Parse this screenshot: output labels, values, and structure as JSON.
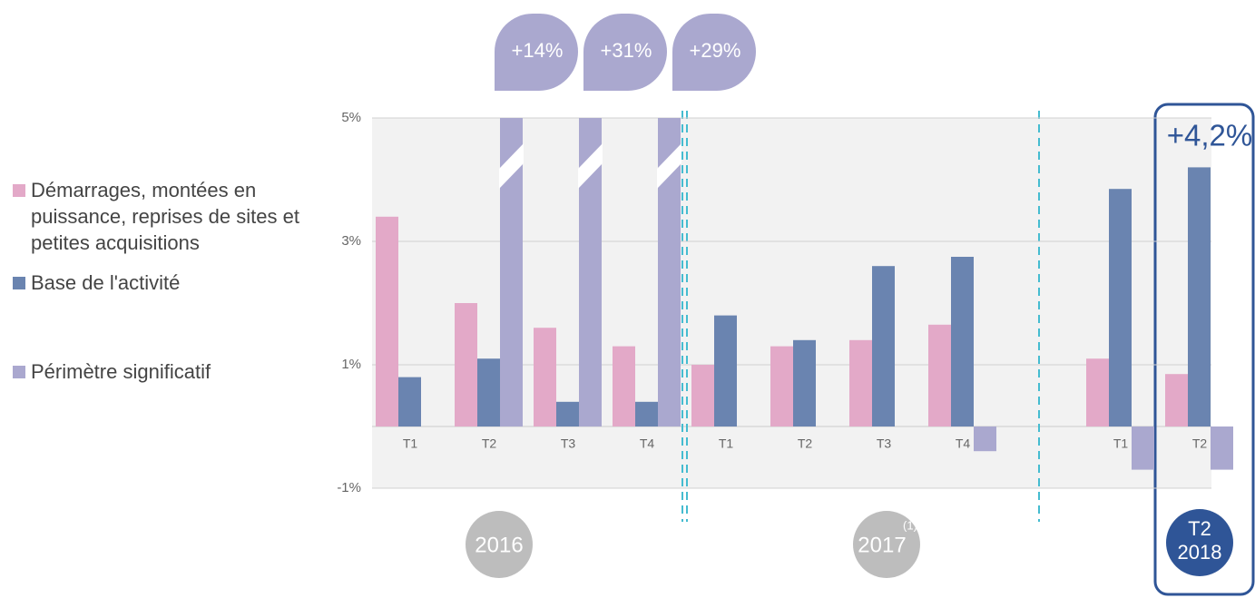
{
  "chart_data": {
    "type": "bar",
    "categories": [
      "T1",
      "T2",
      "T3",
      "T4",
      "T1",
      "T2",
      "T3",
      "T4",
      "T1",
      "T2"
    ],
    "periods": [
      {
        "label": "2016"
      },
      {
        "label": "2017",
        "footnote": "(1)"
      },
      {
        "lines": [
          "T2",
          "2018"
        ]
      }
    ],
    "series": [
      {
        "name": "Démarrages, montées en puissance, reprises de sites et petites acquisitions",
        "color": "#e3a9c8",
        "values": [
          3.4,
          2.0,
          1.6,
          1.3,
          1.0,
          1.3,
          1.4,
          1.65,
          1.1,
          0.85
        ]
      },
      {
        "name": "Base de l'activité",
        "color": "#6a84b0",
        "values": [
          0.8,
          1.1,
          0.4,
          0.4,
          1.8,
          1.4,
          2.6,
          2.75,
          3.85,
          4.2
        ],
        "value_labels": [
          null,
          null,
          null,
          null,
          null,
          null,
          null,
          null,
          null,
          "+4,2%"
        ]
      },
      {
        "name": "Périmètre significatif",
        "color": "#aaa8cf",
        "values": [
          null,
          14,
          31,
          29,
          null,
          null,
          null,
          -0.4,
          -0.7,
          -0.7
        ],
        "value_labels": [
          null,
          "+14%",
          "+31%",
          "+29%",
          null,
          null,
          null,
          null,
          null,
          null
        ]
      }
    ],
    "ylim": [
      -1,
      5
    ],
    "yticks": [
      {
        "value": -1,
        "label": "-1%"
      },
      {
        "value": 1,
        "label": "1%"
      },
      {
        "value": 3,
        "label": "3%"
      },
      {
        "value": 5,
        "label": "5%"
      }
    ],
    "grid": true
  }
}
